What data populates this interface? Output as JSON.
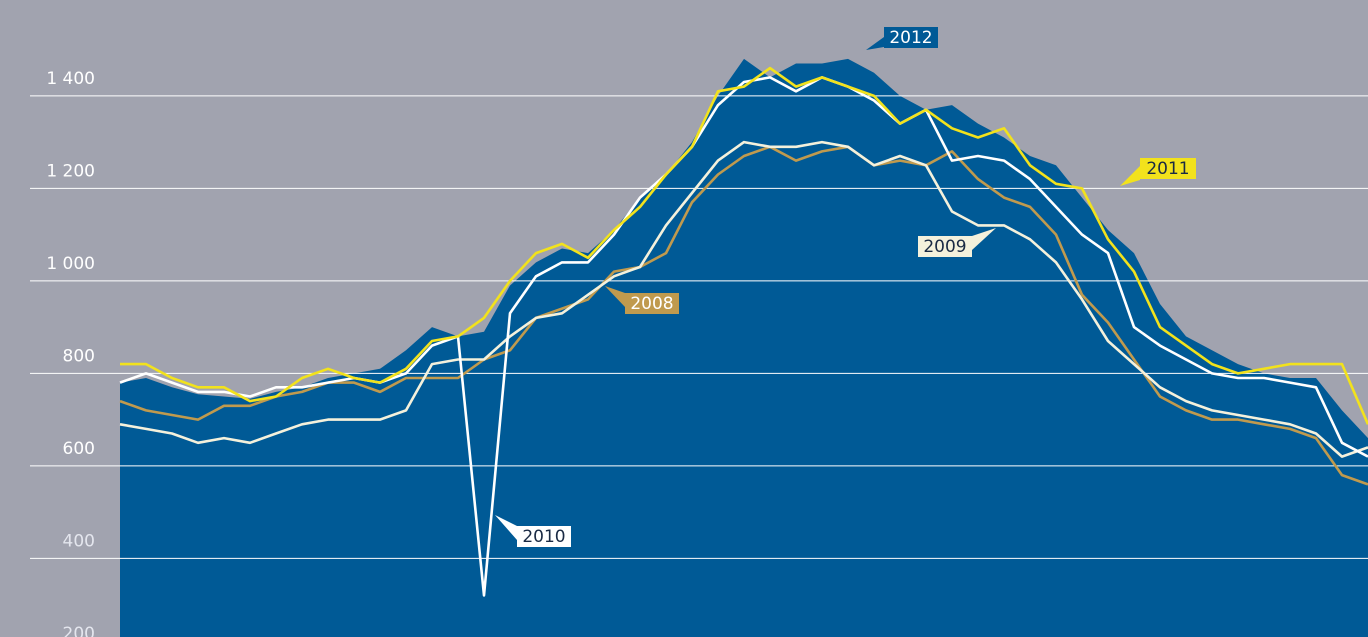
{
  "chart_data": {
    "type": "line",
    "ylim": [
      230,
      1590
    ],
    "yticks": [
      200,
      400,
      600,
      800,
      {
        "value": 1000,
        "label": "1 000"
      },
      {
        "value": 1200,
        "label": "1 200"
      },
      {
        "value": 1400,
        "label": "1 400"
      }
    ],
    "grid": true,
    "series": [
      {
        "name": "2012",
        "color": "#005a96",
        "fill": true,
        "values": [
          780,
          790,
          770,
          755,
          750,
          745,
          760,
          770,
          790,
          800,
          810,
          850,
          900,
          880,
          890,
          990,
          1040,
          1070,
          1060,
          1110,
          1180,
          1230,
          1300,
          1400,
          1480,
          1440,
          1470,
          1470,
          1480,
          1450,
          1400,
          1370,
          1380,
          1340,
          1310,
          1270,
          1250,
          1180,
          1110,
          1060,
          950,
          880,
          850,
          820,
          800,
          790,
          790,
          720,
          660
        ]
      },
      {
        "name": "2011",
        "color": "#f2e21c",
        "values": [
          820,
          820,
          790,
          770,
          770,
          740,
          750,
          790,
          810,
          790,
          780,
          810,
          870,
          880,
          920,
          1000,
          1060,
          1080,
          1050,
          1110,
          1160,
          1230,
          1290,
          1410,
          1420,
          1460,
          1420,
          1440,
          1420,
          1400,
          1340,
          1370,
          1330,
          1310,
          1330,
          1250,
          1210,
          1200,
          1090,
          1020,
          900,
          860,
          820,
          800,
          810,
          820,
          820,
          820,
          690
        ]
      },
      {
        "name": "2010",
        "color": "#ffffff",
        "values": [
          780,
          800,
          780,
          760,
          760,
          750,
          770,
          770,
          780,
          790,
          780,
          800,
          860,
          880,
          320,
          930,
          1010,
          1040,
          1040,
          1100,
          1180,
          1230,
          1290,
          1380,
          1430,
          1440,
          1410,
          1440,
          1420,
          1390,
          1340,
          1370,
          1260,
          1270,
          1260,
          1220,
          1160,
          1100,
          1060,
          900,
          860,
          830,
          800,
          790,
          790,
          780,
          770,
          650,
          620
        ]
      },
      {
        "name": "2009",
        "color": "#f4f1dc",
        "values": [
          690,
          680,
          670,
          650,
          660,
          650,
          670,
          690,
          700,
          700,
          700,
          720,
          820,
          830,
          830,
          880,
          920,
          930,
          970,
          1010,
          1030,
          1120,
          1190,
          1260,
          1300,
          1290,
          1290,
          1300,
          1290,
          1250,
          1270,
          1250,
          1150,
          1120,
          1120,
          1090,
          1040,
          960,
          870,
          820,
          770,
          740,
          720,
          710,
          700,
          690,
          670,
          620,
          640
        ]
      },
      {
        "name": "2008",
        "color": "#c09a4e",
        "values": [
          740,
          720,
          710,
          700,
          730,
          730,
          750,
          760,
          780,
          780,
          760,
          790,
          790,
          790,
          830,
          850,
          920,
          940,
          960,
          1020,
          1030,
          1060,
          1170,
          1230,
          1270,
          1290,
          1260,
          1280,
          1290,
          1250,
          1260,
          1250,
          1280,
          1220,
          1180,
          1160,
          1100,
          970,
          910,
          830,
          750,
          720,
          700,
          700,
          690,
          680,
          660,
          580,
          560
        ]
      }
    ]
  }
}
